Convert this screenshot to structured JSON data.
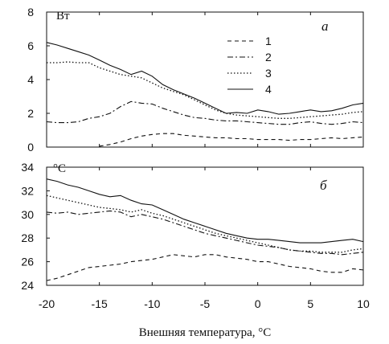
{
  "chart_data": [
    {
      "type": "line",
      "panel_label": "а",
      "unit_label": "Вт",
      "xlim": [
        -20,
        10
      ],
      "ylim": [
        0,
        8
      ],
      "x_ticks": [
        -20,
        -15,
        -10,
        -5,
        0,
        5,
        10
      ],
      "y_ticks": [
        0,
        2,
        4,
        6,
        8
      ],
      "legend_position": "top-right",
      "series": [
        {
          "name": "1",
          "style": "dashed",
          "x": [
            -15,
            -14,
            -13,
            -12,
            -11,
            -10,
            -9,
            -8,
            -7,
            -6,
            -5,
            -4,
            -3,
            -2,
            -1,
            0,
            1,
            2,
            3,
            4,
            5,
            6,
            7,
            8,
            9,
            10
          ],
          "y": [
            0.05,
            0.15,
            0.3,
            0.5,
            0.65,
            0.75,
            0.8,
            0.8,
            0.7,
            0.65,
            0.6,
            0.55,
            0.55,
            0.5,
            0.5,
            0.45,
            0.45,
            0.45,
            0.4,
            0.45,
            0.45,
            0.5,
            0.55,
            0.5,
            0.55,
            0.6
          ]
        },
        {
          "name": "2",
          "style": "dash-dot",
          "x": [
            -20,
            -19,
            -18,
            -17,
            -16,
            -15,
            -14,
            -13,
            -12,
            -11,
            -10,
            -9,
            -8,
            -7,
            -6,
            -5,
            -4,
            -3,
            -2,
            -1,
            0,
            1,
            2,
            3,
            4,
            5,
            6,
            7,
            8,
            9,
            10
          ],
          "y": [
            1.5,
            1.45,
            1.45,
            1.5,
            1.7,
            1.8,
            2.0,
            2.4,
            2.7,
            2.6,
            2.55,
            2.3,
            2.1,
            1.9,
            1.75,
            1.7,
            1.6,
            1.55,
            1.55,
            1.5,
            1.45,
            1.4,
            1.35,
            1.35,
            1.45,
            1.5,
            1.4,
            1.35,
            1.4,
            1.5,
            1.45
          ]
        },
        {
          "name": "3",
          "style": "dotted",
          "x": [
            -20,
            -19,
            -18,
            -17,
            -16,
            -15,
            -14,
            -13,
            -12,
            -11,
            -10,
            -9,
            -8,
            -7,
            -6,
            -5,
            -4,
            -3,
            -2,
            -1,
            0,
            1,
            2,
            3,
            4,
            5,
            6,
            7,
            8,
            9,
            10
          ],
          "y": [
            5.0,
            5.0,
            5.05,
            5.0,
            5.0,
            4.7,
            4.5,
            4.3,
            4.2,
            4.1,
            3.8,
            3.5,
            3.3,
            3.1,
            2.8,
            2.5,
            2.2,
            2.0,
            1.9,
            1.85,
            1.8,
            1.75,
            1.7,
            1.7,
            1.75,
            1.8,
            1.85,
            1.9,
            1.95,
            2.05,
            2.1
          ]
        },
        {
          "name": "4",
          "style": "solid",
          "x": [
            -20,
            -19,
            -18,
            -17,
            -16,
            -15,
            -14,
            -13,
            -12,
            -11,
            -10,
            -9,
            -8,
            -7,
            -6,
            -5,
            -4,
            -3,
            -2,
            -1,
            0,
            1,
            2,
            3,
            4,
            5,
            6,
            7,
            8,
            9,
            10
          ],
          "y": [
            6.2,
            6.05,
            5.85,
            5.65,
            5.45,
            5.15,
            4.85,
            4.6,
            4.3,
            4.5,
            4.2,
            3.7,
            3.4,
            3.15,
            2.9,
            2.6,
            2.3,
            2.0,
            2.05,
            2.0,
            2.2,
            2.1,
            1.95,
            2.0,
            2.1,
            2.2,
            2.1,
            2.15,
            2.3,
            2.5,
            2.6
          ]
        }
      ]
    },
    {
      "type": "line",
      "panel_label": "б",
      "unit_label": "°C",
      "xlim": [
        -20,
        10
      ],
      "ylim": [
        24,
        34
      ],
      "x_ticks": [
        -20,
        -15,
        -10,
        -5,
        0,
        5,
        10
      ],
      "y_ticks": [
        24,
        26,
        28,
        30,
        32,
        34
      ],
      "xlabel": "Внешняя температура, °C",
      "series": [
        {
          "name": "1",
          "style": "dashed",
          "x": [
            -20,
            -19,
            -18,
            -17,
            -16,
            -15,
            -14,
            -13,
            -12,
            -11,
            -10,
            -9,
            -8,
            -7,
            -6,
            -5,
            -4,
            -3,
            -2,
            -1,
            0,
            1,
            2,
            3,
            4,
            5,
            6,
            7,
            8,
            9,
            10
          ],
          "y": [
            24.4,
            24.6,
            24.9,
            25.2,
            25.5,
            25.6,
            25.7,
            25.8,
            26.0,
            26.1,
            26.2,
            26.4,
            26.6,
            26.5,
            26.4,
            26.6,
            26.6,
            26.4,
            26.3,
            26.2,
            26.0,
            26.0,
            25.8,
            25.6,
            25.5,
            25.4,
            25.2,
            25.1,
            25.1,
            25.4,
            25.3
          ]
        },
        {
          "name": "2",
          "style": "dash-dot",
          "x": [
            -20,
            -19,
            -18,
            -17,
            -16,
            -15,
            -14,
            -13,
            -12,
            -11,
            -10,
            -9,
            -8,
            -7,
            -6,
            -5,
            -4,
            -3,
            -2,
            -1,
            0,
            1,
            2,
            3,
            4,
            5,
            6,
            7,
            8,
            9,
            10
          ],
          "y": [
            30.2,
            30.1,
            30.2,
            30.0,
            30.1,
            30.2,
            30.3,
            30.2,
            29.8,
            30.0,
            29.8,
            29.6,
            29.3,
            29.0,
            28.7,
            28.4,
            28.2,
            28.0,
            27.8,
            27.6,
            27.4,
            27.3,
            27.2,
            27.0,
            26.9,
            26.8,
            26.7,
            26.7,
            26.6,
            26.7,
            26.8
          ]
        },
        {
          "name": "3",
          "style": "dotted",
          "x": [
            -20,
            -19,
            -18,
            -17,
            -16,
            -15,
            -14,
            -13,
            -12,
            -11,
            -10,
            -9,
            -8,
            -7,
            -6,
            -5,
            -4,
            -3,
            -2,
            -1,
            0,
            1,
            2,
            3,
            4,
            5,
            6,
            7,
            8,
            9,
            10
          ],
          "y": [
            31.6,
            31.4,
            31.2,
            31.0,
            30.8,
            30.6,
            30.5,
            30.4,
            30.2,
            30.4,
            30.1,
            29.9,
            29.6,
            29.3,
            29.0,
            28.7,
            28.4,
            28.2,
            28.0,
            27.8,
            27.6,
            27.4,
            27.2,
            27.0,
            26.9,
            26.9,
            26.8,
            26.8,
            26.8,
            27.0,
            27.1
          ]
        },
        {
          "name": "4",
          "style": "solid",
          "x": [
            -20,
            -19,
            -18,
            -17,
            -16,
            -15,
            -14,
            -13,
            -12,
            -11,
            -10,
            -9,
            -8,
            -7,
            -6,
            -5,
            -4,
            -3,
            -2,
            -1,
            0,
            1,
            2,
            3,
            4,
            5,
            6,
            7,
            8,
            9,
            10
          ],
          "y": [
            33.0,
            32.8,
            32.5,
            32.3,
            32.0,
            31.7,
            31.5,
            31.6,
            31.2,
            30.9,
            30.8,
            30.4,
            30.0,
            29.6,
            29.3,
            29.0,
            28.7,
            28.4,
            28.2,
            28.0,
            27.9,
            27.9,
            27.8,
            27.7,
            27.6,
            27.6,
            27.6,
            27.7,
            27.8,
            27.9,
            27.7
          ]
        }
      ]
    }
  ]
}
